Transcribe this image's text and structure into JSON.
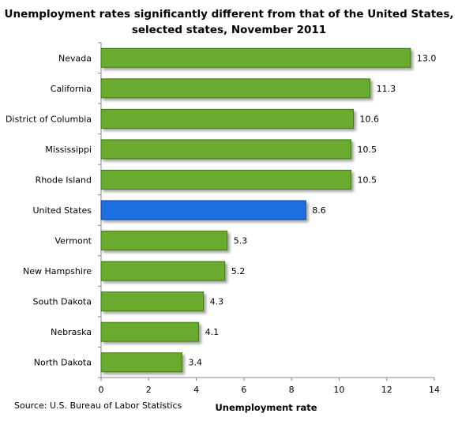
{
  "chart_data": {
    "type": "bar",
    "orientation": "horizontal",
    "title_lines": [
      "Unemployment rates significantly different from that of the United States,",
      "selected states, November 2011"
    ],
    "categories": [
      "Nevada",
      "California",
      "District of Columbia",
      "Mississippi",
      "Rhode Island",
      "United States",
      "Vermont",
      "New Hampshire",
      "South Dakota",
      "Nebraska",
      "North Dakota"
    ],
    "values": [
      13.0,
      11.3,
      10.6,
      10.5,
      10.5,
      8.6,
      5.3,
      5.2,
      4.3,
      4.1,
      3.4
    ],
    "value_labels": [
      "13.0",
      "11.3",
      "10.6",
      "10.5",
      "10.5",
      "8.6",
      "5.3",
      "5.2",
      "4.3",
      "4.1",
      "3.4"
    ],
    "highlight_category": "United States",
    "xlabel": "Unemployment rate",
    "ylabel": "",
    "xlim": [
      0,
      14
    ],
    "xticks": [
      "0",
      "2",
      "4",
      "6",
      "8",
      "10",
      "12",
      "14"
    ],
    "grid": false,
    "legend": "none",
    "colors": {
      "bar": "#6aaa2e",
      "bar_stroke": "#3f7a12",
      "highlight": "#1f6fe0",
      "highlight_stroke": "#0b3f9e"
    }
  },
  "source": "Source: U.S. Bureau of Labor Statistics"
}
